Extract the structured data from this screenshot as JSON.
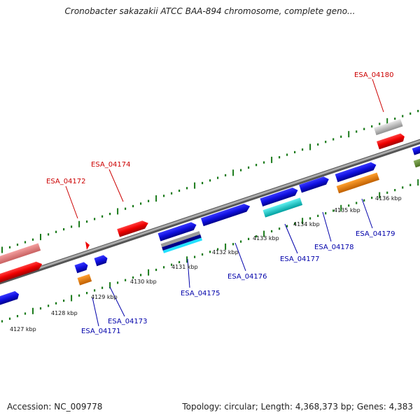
{
  "title": "Cronobacter sakazakii ATCC BAA-894 chromosome, complete geno...",
  "footer": {
    "accession": "Accession: NC_009778",
    "summary": "Topology: circular; Length: 4,368,373 bp; Genes: 4,383"
  },
  "colors": {
    "forward_label": "#cc0000",
    "reverse_label": "#0000aa",
    "tick": "#1a7a1a",
    "backbone": "#888888"
  },
  "scale_labels": [
    "4127 kbp",
    "4128 kbp",
    "4129 kbp",
    "4130 kbp",
    "4131 kbp",
    "4132 kbp",
    "4133 kbp",
    "4134 kbp",
    "4135 kbp",
    "4136 kbp"
  ],
  "gene_labels": {
    "forward": [
      "ESA_04172",
      "ESA_04174",
      "ESA_04180"
    ],
    "reverse": [
      "ESA_04171",
      "ESA_04173",
      "ESA_04175",
      "ESA_04176",
      "ESA_04177",
      "ESA_04178",
      "ESA_04179"
    ]
  }
}
